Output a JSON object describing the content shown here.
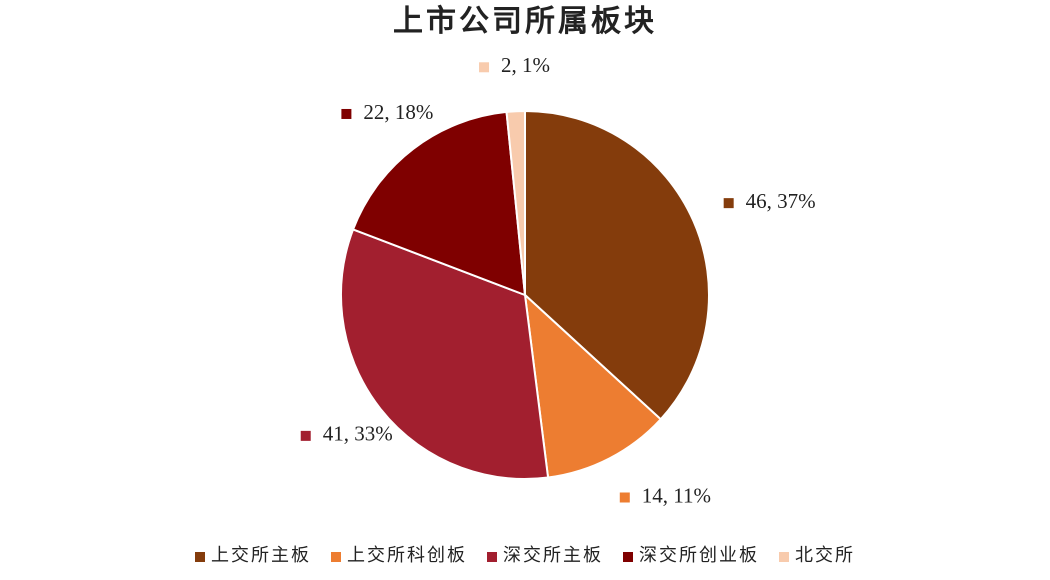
{
  "chart_data": {
    "type": "pie",
    "title": "上市公司所属板块",
    "categories": [
      "上交所主板",
      "上交所科创板",
      "深交所主板",
      "深交所创业板",
      "北交所"
    ],
    "values": [
      46,
      14,
      41,
      22,
      2
    ],
    "value_labels": [
      "46, 37%",
      "14, 11%",
      "41, 33%",
      "22, 18%",
      "2, 1%"
    ],
    "colors": [
      "#843c0c",
      "#ed7d31",
      "#a21f2f",
      "#7f0000",
      "#f8cbad"
    ],
    "legend": "bottom"
  }
}
